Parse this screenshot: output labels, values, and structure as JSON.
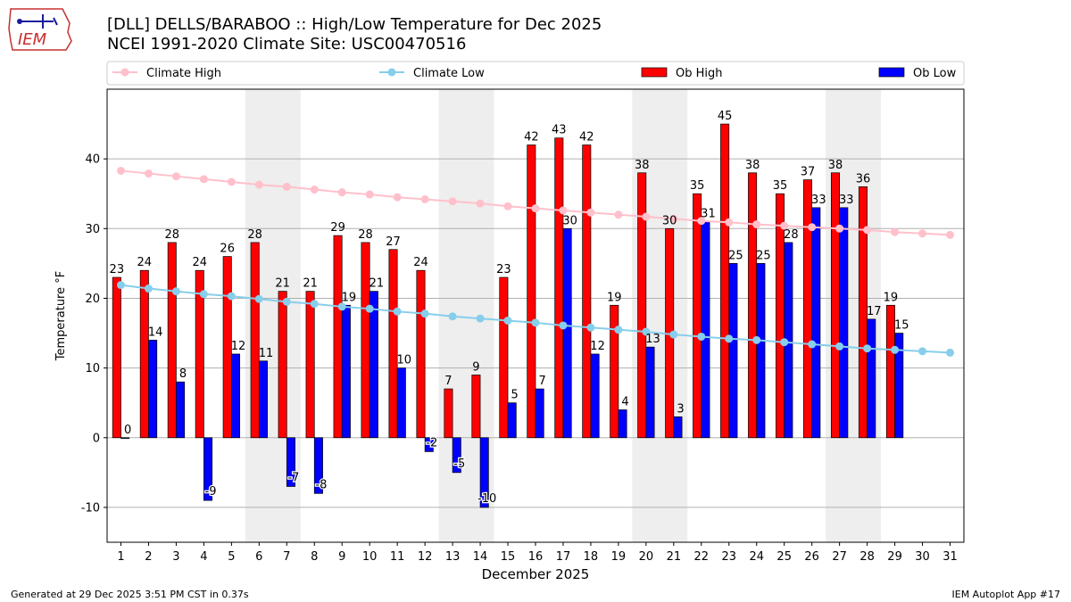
{
  "header": {
    "title_line1": "[DLL] DELLS/BARABOO :: High/Low Temperature for Dec 2025",
    "title_line2": "NCEI 1991-2020 Climate Site: USC00470516",
    "logo_text": "IEM"
  },
  "footer": {
    "generated": "Generated at 29 Dec 2025 3:51 PM CST in 0.37s",
    "app": "IEM Autoplot App #17"
  },
  "colors": {
    "ob_high": "#ff0000",
    "ob_low": "#0000ff",
    "climate_high": "#ffc0cb",
    "climate_low": "#87ceeb",
    "weekend_shade": "#eeeeee"
  },
  "chart_data": {
    "type": "bar",
    "xlabel": "December 2025",
    "ylabel": "Temperature °F",
    "ylim": [
      -15,
      50
    ],
    "yticks": [
      -10,
      0,
      10,
      20,
      30,
      40
    ],
    "grid": "horizontal",
    "legend_position": "top",
    "categories": [
      "1",
      "2",
      "3",
      "4",
      "5",
      "6",
      "7",
      "8",
      "9",
      "10",
      "11",
      "12",
      "13",
      "14",
      "15",
      "16",
      "17",
      "18",
      "19",
      "20",
      "21",
      "22",
      "23",
      "24",
      "25",
      "26",
      "27",
      "28",
      "29",
      "30",
      "31"
    ],
    "shaded_days": [
      6,
      7,
      13,
      14,
      20,
      21,
      27,
      28
    ],
    "series": [
      {
        "name": "Climate High",
        "kind": "line",
        "values": [
          38.3,
          37.9,
          37.5,
          37.1,
          36.7,
          36.3,
          36.0,
          35.6,
          35.2,
          34.9,
          34.5,
          34.2,
          33.9,
          33.6,
          33.2,
          32.9,
          32.6,
          32.3,
          32.0,
          31.7,
          31.4,
          31.1,
          30.9,
          30.6,
          30.4,
          30.2,
          30.0,
          29.8,
          29.5,
          29.3,
          29.1
        ]
      },
      {
        "name": "Climate Low",
        "kind": "line",
        "values": [
          21.9,
          21.4,
          21.0,
          20.6,
          20.3,
          19.9,
          19.5,
          19.2,
          18.8,
          18.5,
          18.1,
          17.8,
          17.4,
          17.1,
          16.8,
          16.5,
          16.1,
          15.8,
          15.5,
          15.2,
          14.8,
          14.5,
          14.2,
          14.0,
          13.7,
          13.4,
          13.1,
          12.8,
          12.6,
          12.4,
          12.2
        ]
      },
      {
        "name": "Ob High",
        "kind": "bar",
        "values": [
          23,
          24,
          28,
          24,
          26,
          28,
          21,
          21,
          29,
          28,
          27,
          24,
          7,
          9,
          23,
          42,
          43,
          42,
          19,
          38,
          30,
          35,
          45,
          38,
          35,
          37,
          38,
          36,
          19,
          null,
          null
        ]
      },
      {
        "name": "Ob Low",
        "kind": "bar",
        "values": [
          0,
          14,
          8,
          -9,
          12,
          11,
          -7,
          -8,
          19,
          21,
          10,
          -2,
          -5,
          -10,
          5,
          7,
          30,
          12,
          4,
          13,
          3,
          31,
          25,
          25,
          28,
          33,
          33,
          17,
          15,
          null,
          null
        ]
      }
    ]
  }
}
